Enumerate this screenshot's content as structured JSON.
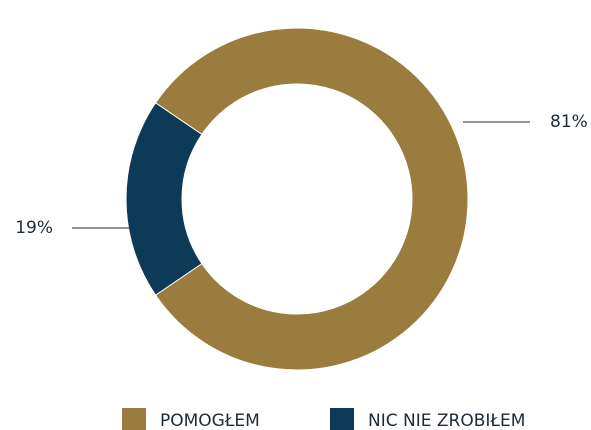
{
  "chart_data": {
    "type": "donut",
    "categories": [
      "POMOGŁEM",
      "NIC NIE ZROBIŁEM"
    ],
    "values": [
      81,
      19
    ],
    "value_labels": [
      "81%",
      "19%"
    ],
    "colors": [
      "#9a7d3e",
      "#0d3a56"
    ]
  }
}
